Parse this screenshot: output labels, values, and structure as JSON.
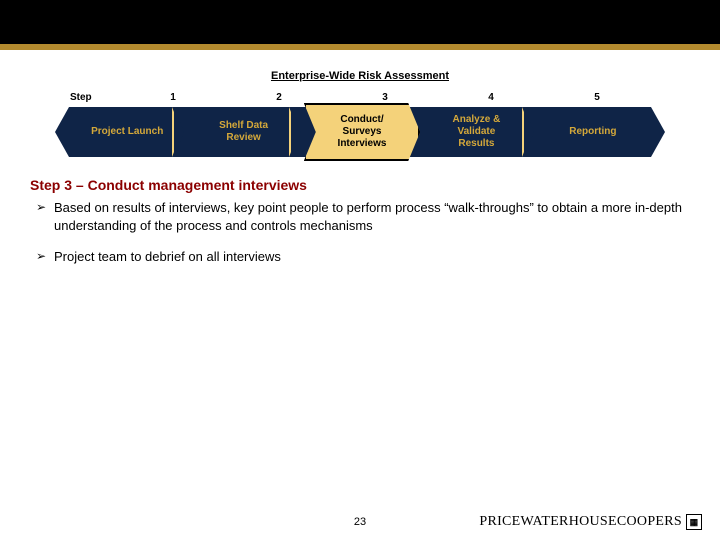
{
  "diagram": {
    "title": "Enterprise-Wide Risk Assessment",
    "step_label": "Step",
    "numbers": [
      "1",
      "2",
      "3",
      "4",
      "5"
    ],
    "stages": [
      "Project Launch",
      "Shelf Data\nReview",
      "Conduct/\nSurveys\nInterviews",
      "Analyze &\nValidate\nResults",
      "Reporting"
    ],
    "highlight_index": 2,
    "colors": {
      "band": "#0f2447",
      "stage_text": "#d4a83a",
      "chevron_fill": "#f4d27a",
      "highlight_fill": "#f4d27a",
      "highlight_border": "#000000",
      "highlight_text": "#000000"
    }
  },
  "section": {
    "heading": "Step 3 – Conduct management interviews",
    "heading_color": "#8b0000",
    "bullets": [
      "Based on results of interviews, key point people to perform process “walk-throughs” to obtain a more in-depth understanding of the process and controls mechanisms",
      "Project team to debrief on all interviews"
    ],
    "bullet_glyph": "➢"
  },
  "footer": {
    "page": "23",
    "brand": "PRICEWATERHOUSECOOPERS",
    "brand_badge": "▦"
  },
  "top_bar_color": "#000000",
  "gold_bar_color": "#b38a2e"
}
